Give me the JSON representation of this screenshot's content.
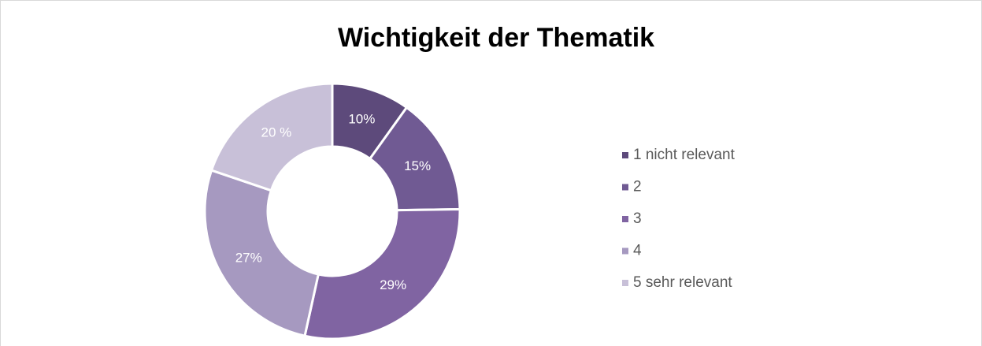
{
  "chart_data": {
    "type": "pie",
    "donut": true,
    "title": "Wichtigkeit der Thematik",
    "categories": [
      "1 nicht relevant",
      "2",
      "3",
      "4",
      "5 sehr relevant"
    ],
    "values": [
      10,
      15,
      29,
      27,
      20
    ],
    "value_labels": [
      "10%",
      "15%",
      "29%",
      "27%",
      "20 %"
    ],
    "colors": [
      "#5d4a7b",
      "#705a93",
      "#8064a2",
      "#a699c0",
      "#c8c0d8"
    ],
    "legend": "right"
  }
}
